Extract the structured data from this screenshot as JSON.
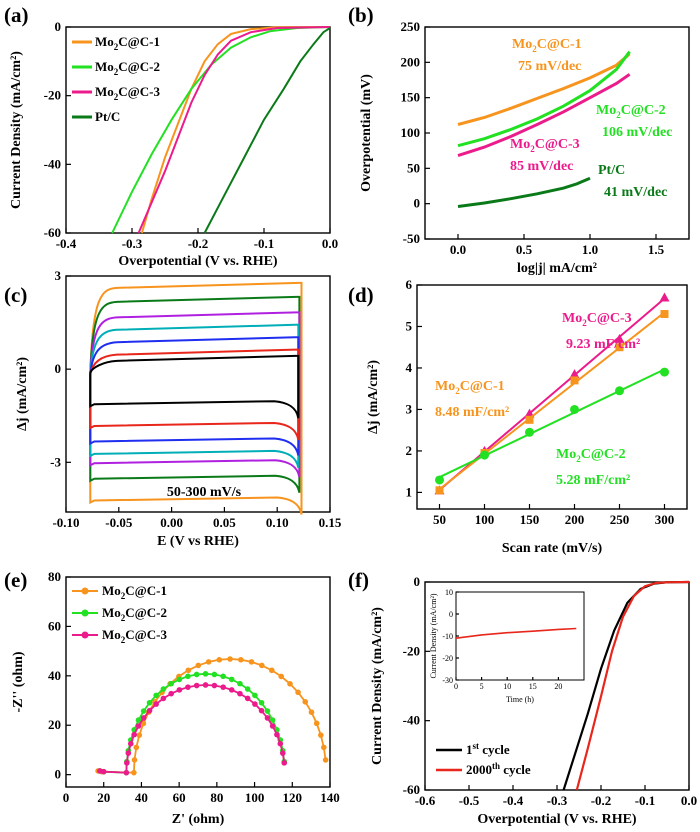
{
  "colors": {
    "orange": "#f7941d",
    "green": "#22e022",
    "magenta": "#ec1b8c",
    "darkgreen": "#0a7a18",
    "black": "#000000",
    "red": "#e8261b",
    "blue": "#1f2ef0",
    "purple": "#b020e0",
    "teal": "#00aeb8"
  },
  "chart_data": [
    {
      "panel": "(a)",
      "type": "line",
      "xlabel": "Overpotential (V vs. RHE)",
      "ylabel": "Current Density (mA/cm²)",
      "xlim": [
        -0.4,
        0.0
      ],
      "ylim": [
        -60,
        0
      ],
      "xticks": [
        "-0.4",
        "-0.3",
        "-0.2",
        "-0.1",
        "0.0"
      ],
      "yticks": [
        "0",
        "-20",
        "-40",
        "-60"
      ],
      "series": [
        {
          "name": "Mo₂C@C-1",
          "color": "#f7941d",
          "points": [
            [
              -0.285,
              -60
            ],
            [
              -0.27,
              -50
            ],
            [
              -0.25,
              -38
            ],
            [
              -0.23,
              -28
            ],
            [
              -0.21,
              -18
            ],
            [
              -0.19,
              -10
            ],
            [
              -0.17,
              -5
            ],
            [
              -0.15,
              -2
            ],
            [
              -0.12,
              -0.6
            ],
            [
              -0.08,
              -0.1
            ],
            [
              0,
              0
            ]
          ]
        },
        {
          "name": "Mo₂C@C-2",
          "color": "#22e022",
          "points": [
            [
              -0.33,
              -60
            ],
            [
              -0.3,
              -48
            ],
            [
              -0.27,
              -37
            ],
            [
              -0.24,
              -27
            ],
            [
              -0.21,
              -18
            ],
            [
              -0.18,
              -11
            ],
            [
              -0.15,
              -6
            ],
            [
              -0.12,
              -3
            ],
            [
              -0.09,
              -1.2
            ],
            [
              -0.05,
              -0.3
            ],
            [
              0,
              0
            ]
          ]
        },
        {
          "name": "Mo₂C@C-3",
          "color": "#ec1b8c",
          "points": [
            [
              -0.29,
              -60
            ],
            [
              -0.27,
              -51
            ],
            [
              -0.25,
              -42
            ],
            [
              -0.23,
              -32
            ],
            [
              -0.21,
              -22
            ],
            [
              -0.19,
              -14
            ],
            [
              -0.17,
              -8
            ],
            [
              -0.15,
              -4
            ],
            [
              -0.12,
              -1.5
            ],
            [
              -0.08,
              -0.3
            ],
            [
              0,
              0
            ]
          ]
        },
        {
          "name": "Pt/C",
          "color": "#0a7a18",
          "points": [
            [
              -0.19,
              -60
            ],
            [
              -0.16,
              -49
            ],
            [
              -0.13,
              -38
            ],
            [
              -0.1,
              -27
            ],
            [
              -0.07,
              -18
            ],
            [
              -0.045,
              -10
            ],
            [
              -0.025,
              -5
            ],
            [
              -0.01,
              -1.5
            ],
            [
              0,
              -0.3
            ]
          ]
        }
      ]
    },
    {
      "panel": "(b)",
      "type": "line",
      "xlabel": "log|j| mA/cm²",
      "ylabel": "Overpotential (mV)",
      "xlim": [
        -0.25,
        1.75
      ],
      "ylim": [
        -50,
        250
      ],
      "xticks": [
        "0.0",
        "0.5",
        "1.0",
        "1.5"
      ],
      "yticks": [
        "-50",
        "0",
        "50",
        "100",
        "150",
        "200",
        "250"
      ],
      "series": [
        {
          "name": "Mo₂C@C-1",
          "slope_label": "75 mV/dec",
          "color": "#f7941d",
          "points": [
            [
              0.0,
              112
            ],
            [
              0.2,
              122
            ],
            [
              0.4,
              135
            ],
            [
              0.6,
              149
            ],
            [
              0.8,
              163
            ],
            [
              1.0,
              178
            ],
            [
              1.2,
              196
            ],
            [
              1.3,
              212
            ]
          ]
        },
        {
          "name": "Mo₂C@C-2",
          "slope_label": "106 mV/dec",
          "color": "#22e022",
          "points": [
            [
              0.0,
              82
            ],
            [
              0.2,
              92
            ],
            [
              0.4,
              105
            ],
            [
              0.6,
              120
            ],
            [
              0.8,
              138
            ],
            [
              1.0,
              160
            ],
            [
              1.2,
              190
            ],
            [
              1.3,
              215
            ]
          ]
        },
        {
          "name": "Mo₂C@C-3",
          "slope_label": "85 mV/dec",
          "color": "#ec1b8c",
          "points": [
            [
              0.0,
              68
            ],
            [
              0.2,
              80
            ],
            [
              0.4,
              95
            ],
            [
              0.6,
              112
            ],
            [
              0.8,
              130
            ],
            [
              1.0,
              150
            ],
            [
              1.2,
              170
            ],
            [
              1.3,
              183
            ]
          ]
        },
        {
          "name": "Pt/C",
          "slope_label": "41 mV/dec",
          "color": "#0a7a18",
          "points": [
            [
              0.0,
              -4
            ],
            [
              0.2,
              1
            ],
            [
              0.4,
              7
            ],
            [
              0.6,
              14
            ],
            [
              0.8,
              22
            ],
            [
              0.9,
              28
            ],
            [
              1.0,
              36
            ]
          ]
        }
      ]
    },
    {
      "panel": "(c)",
      "type": "line",
      "xlabel": "E (V vs RHE)",
      "ylabel": "Δj (mA/cm²)",
      "annotation": "50-300 mV/s",
      "xlim": [
        -0.1,
        0.15
      ],
      "ylim": [
        -4.6,
        3.0
      ],
      "xticks": [
        "-0.10",
        "-0.05",
        "0.00",
        "0.05",
        "0.10",
        "0.15"
      ],
      "yticks": [
        "3",
        "0",
        "-3"
      ],
      "loops": [
        {
          "color": "#f7941d",
          "upper": 2.65,
          "lower": -4.1,
          "xlo": -0.077,
          "xhi": 0.123
        },
        {
          "color": "#0a7a18",
          "upper": 2.2,
          "lower": -3.4,
          "xlo": -0.077,
          "xhi": 0.121
        },
        {
          "color": "#b020e0",
          "upper": 1.7,
          "lower": -2.9,
          "xlo": -0.077,
          "xhi": 0.121
        },
        {
          "color": "#00aeb8",
          "upper": 1.3,
          "lower": -2.6,
          "xlo": -0.077,
          "xhi": 0.12
        },
        {
          "color": "#1f2ef0",
          "upper": 0.9,
          "lower": -2.2,
          "xlo": -0.077,
          "xhi": 0.12
        },
        {
          "color": "#e8261b",
          "upper": 0.5,
          "lower": -1.7,
          "xlo": -0.077,
          "xhi": 0.12
        },
        {
          "color": "#000000",
          "upper": 0.3,
          "lower": -1.0,
          "xlo": -0.077,
          "xhi": 0.12
        }
      ]
    },
    {
      "panel": "(d)",
      "type": "scatter",
      "xlabel": "Scan rate (mV/s)",
      "ylabel": "Δj (mA/cm²)",
      "xlim": [
        25,
        325
      ],
      "ylim": [
        0.6,
        6.0
      ],
      "xticks": [
        "50",
        "100",
        "150",
        "200",
        "250",
        "300"
      ],
      "yticks": [
        "1",
        "2",
        "3",
        "4",
        "5",
        "6"
      ],
      "series": [
        {
          "name": "Mo₂C@C-3",
          "value_label": "9.23 mF/cm²",
          "color": "#ec1b8c",
          "x": [
            50,
            100,
            150,
            200,
            250,
            300
          ],
          "y": [
            1.05,
            2.0,
            2.9,
            3.85,
            4.7,
            5.7
          ]
        },
        {
          "name": "Mo₂C@C-1",
          "value_label": "8.48 mF/cm²",
          "color": "#f7941d",
          "x": [
            50,
            100,
            150,
            200,
            250,
            300
          ],
          "y": [
            1.05,
            1.95,
            2.75,
            3.7,
            4.5,
            5.3
          ]
        },
        {
          "name": "Mo₂C@C-2",
          "value_label": "5.28 mF/cm²",
          "color": "#22e022",
          "x": [
            50,
            100,
            150,
            200,
            250,
            300
          ],
          "y": [
            1.3,
            1.9,
            2.45,
            3.0,
            3.45,
            3.9
          ]
        }
      ]
    },
    {
      "panel": "(e)",
      "type": "scatter",
      "xlabel": "Z' (ohm)",
      "ylabel": "-Z'' (ohm)",
      "xlim": [
        0,
        140
      ],
      "ylim": [
        -5,
        80
      ],
      "xticks": [
        "0",
        "20",
        "40",
        "60",
        "80",
        "100",
        "120",
        "140"
      ],
      "yticks": [
        "0",
        "20",
        "40",
        "60",
        "80"
      ],
      "series": [
        {
          "name": "Mo₂C@C-1",
          "color": "#f7941d",
          "center": 87,
          "radius": 51,
          "peak": 46,
          "start": 17
        },
        {
          "name": "Mo₂C@C-2",
          "color": "#22e022",
          "center": 74,
          "radius": 42,
          "peak": 40,
          "start": 18
        },
        {
          "name": "Mo₂C@C-3",
          "color": "#ec1b8c",
          "center": 74,
          "radius": 42,
          "peak": 35.5,
          "start": 18
        }
      ]
    },
    {
      "panel": "(f)",
      "type": "line",
      "xlabel": "Overpotential (V vs. RHE)",
      "ylabel": "Current Density (mA/cm²)",
      "xlim": [
        -0.6,
        0.0
      ],
      "ylim": [
        -60,
        0
      ],
      "xticks": [
        "-0.6",
        "-0.5",
        "-0.4",
        "-0.3",
        "-0.2",
        "-0.1",
        "0.0"
      ],
      "yticks": [
        "0",
        "-20",
        "-40",
        "-60"
      ],
      "series": [
        {
          "name": "1st cycle",
          "color": "#000000",
          "points": [
            [
              -0.285,
              -60
            ],
            [
              -0.26,
              -50
            ],
            [
              -0.23,
              -38
            ],
            [
              -0.2,
              -25
            ],
            [
              -0.17,
              -14
            ],
            [
              -0.14,
              -6
            ],
            [
              -0.11,
              -2
            ],
            [
              -0.08,
              -0.5
            ],
            [
              -0.05,
              -0.1
            ],
            [
              0,
              0
            ]
          ]
        },
        {
          "name": "2000th cycle",
          "color": "#e8261b",
          "points": [
            [
              -0.255,
              -60
            ],
            [
              -0.23,
              -48
            ],
            [
              -0.2,
              -33
            ],
            [
              -0.175,
              -20
            ],
            [
              -0.15,
              -10
            ],
            [
              -0.125,
              -4
            ],
            [
              -0.1,
              -1.2
            ],
            [
              -0.075,
              -0.3
            ],
            [
              -0.05,
              -0.1
            ],
            [
              0,
              0
            ]
          ]
        }
      ],
      "inset": {
        "xlabel": "Time (h)",
        "ylabel": "Current Density (mA/cm²)",
        "xlim": [
          0,
          25
        ],
        "ylim": [
          -30,
          10
        ],
        "xticks": [
          "0",
          "5",
          "10",
          "15",
          "20"
        ],
        "yticks": [
          "10",
          "0",
          "-10",
          "-20",
          "-30"
        ],
        "series": [
          {
            "color": "#e8261b",
            "points": [
              [
                0,
                -11
              ],
              [
                5,
                -9.5
              ],
              [
                10,
                -8.5
              ],
              [
                15,
                -7.8
              ],
              [
                20,
                -7.0
              ],
              [
                23.5,
                -6.6
              ]
            ]
          }
        ]
      }
    }
  ]
}
